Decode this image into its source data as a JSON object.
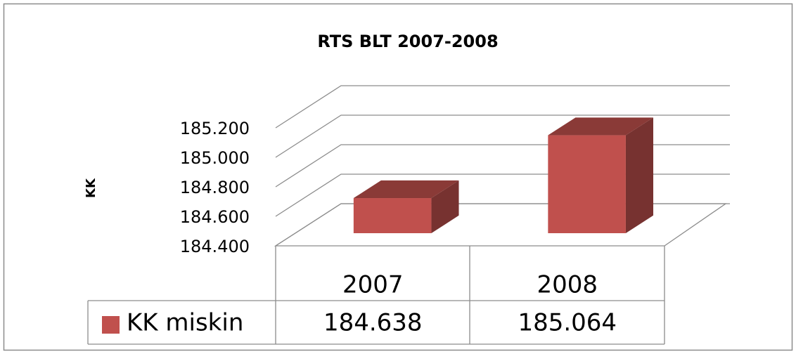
{
  "chart_data": {
    "type": "bar3d",
    "title": "RTS BLT 2007-2008",
    "y_label": "KK",
    "categories": [
      "2007",
      "2008"
    ],
    "series": [
      {
        "name": "KK miskin",
        "color": "#c0504d",
        "values": [
          184638,
          185064
        ],
        "value_labels": [
          "184.638",
          "185.064"
        ]
      }
    ],
    "ylim": [
      184400,
      185200
    ],
    "yticks": [
      {
        "value": 184400,
        "label": "184.400"
      },
      {
        "value": 184600,
        "label": "184.600"
      },
      {
        "value": 184800,
        "label": "184.800"
      },
      {
        "value": 185000,
        "label": "185.000"
      },
      {
        "value": 185200,
        "label": "185.200"
      }
    ],
    "grid": true,
    "legend": "data-table"
  }
}
